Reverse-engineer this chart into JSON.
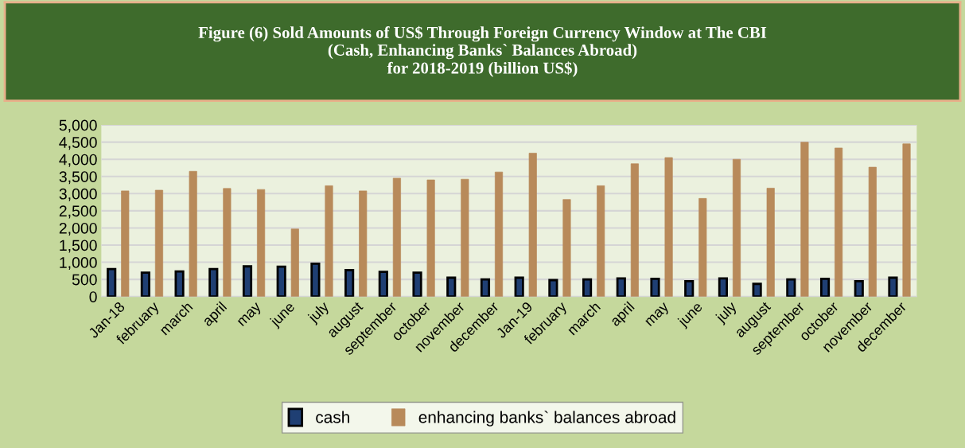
{
  "chart_data": {
    "type": "bar",
    "title": "Figure (6) Sold Amounts of US$ Through Foreign Currency Window at The CBI\n(Cash, Enhancing Banks` Balances Abroad)\nfor 2018-2019 (billion US$)",
    "categories": [
      "Jan-18",
      "february",
      "march",
      "april",
      "may",
      "june",
      "july",
      "august",
      "september",
      "october",
      "november",
      "december",
      "Jan-19",
      "february",
      "march",
      "april",
      "may",
      "june",
      "july",
      "august",
      "september",
      "october",
      "november",
      "december"
    ],
    "series": [
      {
        "name": "cash",
        "color": "#1f3f73",
        "values": [
          800,
          700,
          730,
          800,
          880,
          870,
          960,
          770,
          720,
          700,
          550,
          500,
          550,
          480,
          500,
          530,
          520,
          450,
          530,
          370,
          500,
          520,
          450,
          550
        ]
      },
      {
        "name": "enhancing banks` balances abroad",
        "color": "#b88a5a",
        "values": [
          3080,
          3100,
          3650,
          3150,
          3120,
          1970,
          3230,
          3080,
          3450,
          3400,
          3420,
          3630,
          4180,
          2830,
          3230,
          3870,
          4050,
          2860,
          4000,
          3160,
          4500,
          4330,
          3770,
          4450
        ]
      }
    ],
    "ylim": [
      0,
      5000
    ],
    "yticks": [
      {
        "value": 0,
        "label": "0"
      },
      {
        "value": 500,
        "label": "500"
      },
      {
        "value": 1000,
        "label": "1,000"
      },
      {
        "value": 1500,
        "label": "1,500"
      },
      {
        "value": 2000,
        "label": "2,000"
      },
      {
        "value": 2500,
        "label": "2,500"
      },
      {
        "value": 3000,
        "label": "3,000"
      },
      {
        "value": 3500,
        "label": "3,500"
      },
      {
        "value": 4000,
        "label": "4,000"
      },
      {
        "value": 4500,
        "label": "4,500"
      },
      {
        "value": 5000,
        "label": "5,000"
      }
    ],
    "grid": "y",
    "legend": "bottom"
  }
}
